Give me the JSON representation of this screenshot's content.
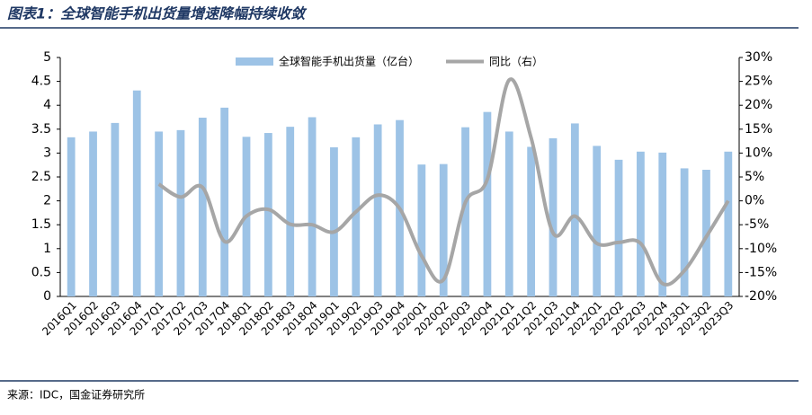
{
  "chart_data": {
    "type": "bar_line",
    "title": "图表1：全球智能手机出货量增速降幅持续收敛",
    "source": "来源：IDC，国金证券研究所",
    "categories": [
      "2016Q1",
      "2016Q2",
      "2016Q3",
      "2016Q4",
      "2017Q1",
      "2017Q2",
      "2017Q3",
      "2017Q4",
      "2018Q1",
      "2018Q2",
      "2018Q3",
      "2018Q4",
      "2019Q1",
      "2019Q2",
      "2019Q3",
      "2019Q4",
      "2020Q1",
      "2020Q2",
      "2020Q3",
      "2020Q4",
      "2021Q1",
      "2021Q2",
      "2021Q3",
      "2021Q4",
      "2022Q1",
      "2022Q2",
      "2022Q3",
      "2022Q4",
      "2023Q1",
      "2023Q2",
      "2023Q3"
    ],
    "series": [
      {
        "name": "全球智能手机出货量（亿台）",
        "type": "bar",
        "color": "#9dc3e6",
        "values": [
          3.33,
          3.45,
          3.63,
          4.31,
          3.45,
          3.48,
          3.74,
          3.95,
          3.34,
          3.42,
          3.55,
          3.75,
          3.12,
          3.33,
          3.6,
          3.69,
          2.76,
          2.77,
          3.54,
          3.86,
          3.45,
          3.13,
          3.31,
          3.62,
          3.15,
          2.86,
          3.03,
          3.01,
          2.68,
          2.65,
          3.03
        ]
      },
      {
        "name": "同比（右）",
        "type": "line",
        "axis": "y2",
        "color": "#a6a6a6",
        "values": [
          null,
          null,
          null,
          null,
          3.5,
          0.8,
          2.8,
          -8.5,
          -3.2,
          -1.8,
          -4.9,
          -5.0,
          -6.5,
          -2.3,
          1.2,
          -1.6,
          -11.5,
          -16.5,
          -0.3,
          4.5,
          25.3,
          13.2,
          -6.7,
          -3.2,
          -8.9,
          -8.7,
          -8.9,
          -17.3,
          -14.6,
          -7.5,
          0.0
        ]
      }
    ],
    "ylim": [
      0,
      5
    ],
    "yticks": [
      0,
      0.5,
      1,
      1.5,
      2,
      2.5,
      3,
      3.5,
      4,
      4.5,
      5
    ],
    "y2lim": [
      -20,
      30
    ],
    "y2ticks": [
      {
        "value": -20,
        "label": "-20%"
      },
      {
        "value": -15,
        "label": "-15%"
      },
      {
        "value": -10,
        "label": "-10%"
      },
      {
        "value": -5,
        "label": "-5%"
      },
      {
        "value": 0,
        "label": "0%"
      },
      {
        "value": 5,
        "label": "5%"
      },
      {
        "value": 10,
        "label": "10%"
      },
      {
        "value": 15,
        "label": "15%"
      },
      {
        "value": 20,
        "label": "20%"
      },
      {
        "value": 25,
        "label": "25%"
      },
      {
        "value": 30,
        "label": "30%"
      }
    ]
  }
}
